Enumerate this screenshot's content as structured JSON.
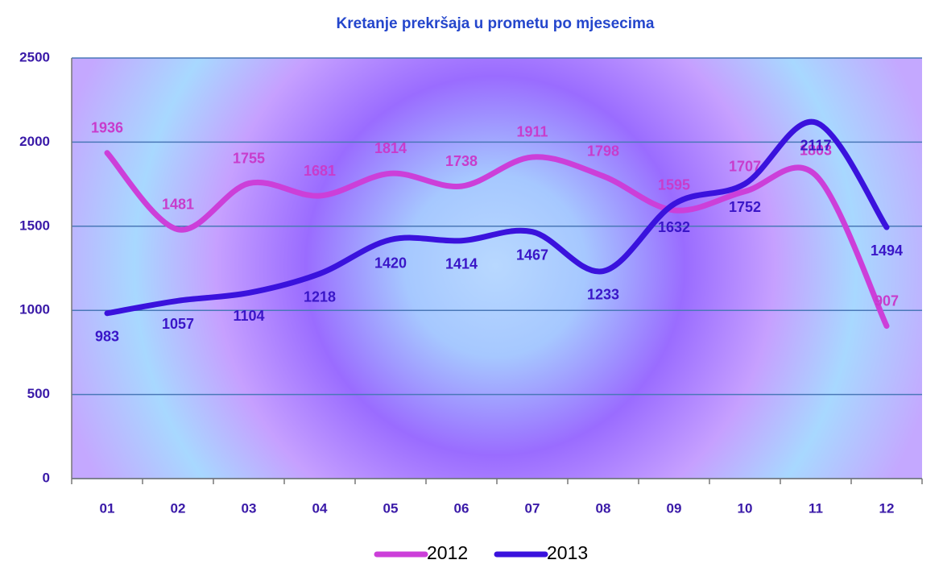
{
  "chart_data": {
    "type": "line",
    "title": "Kretanje prekršaja u prometu po mjesecima",
    "categories": [
      "01",
      "02",
      "03",
      "04",
      "05",
      "06",
      "07",
      "08",
      "09",
      "10",
      "11",
      "12"
    ],
    "series": [
      {
        "name": "2012",
        "color": "#cc3fd9",
        "values": [
          1936,
          1481,
          1755,
          1681,
          1814,
          1738,
          1911,
          1798,
          1595,
          1707,
          1803,
          907
        ]
      },
      {
        "name": "2013",
        "color": "#3a12dd",
        "values": [
          983,
          1057,
          1104,
          1218,
          1420,
          1414,
          1467,
          1233,
          1632,
          1752,
          2117,
          1494
        ]
      }
    ],
    "ylim": [
      0,
      2500
    ],
    "yticks": [
      0,
      500,
      1000,
      1500,
      2000,
      2500
    ],
    "grid": true,
    "legend": "bottom"
  }
}
